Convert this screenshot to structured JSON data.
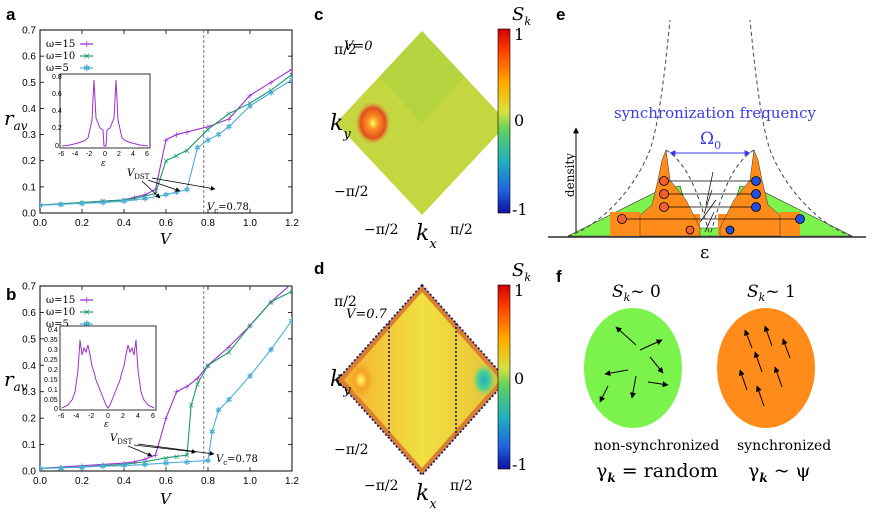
{
  "panels": {
    "a": {
      "label": "a",
      "ylabel": "r",
      "ylabel_sub": "av",
      "xlabel": "V",
      "x_ticks": [
        "0.0",
        "0.2",
        "0.4",
        "0.6",
        "0.8",
        "1.0",
        "1.2"
      ],
      "y_ticks": [
        "0.0",
        "0.1",
        "0.2",
        "0.3",
        "0.4",
        "0.5",
        "0.6",
        "0.7"
      ],
      "legend": [
        "ω=15",
        "ω=10",
        "ω=5"
      ],
      "vdst": "V",
      "vdst_sub": "DST",
      "vc": "V",
      "vc_sub": "c",
      "vc_value": "=0.78",
      "inset": {
        "xlabel": "ε",
        "x_ticks": [
          "-6",
          "-4",
          "-2",
          "0",
          "2",
          "4",
          "6"
        ],
        "y_ticks": [
          "0",
          "0.2",
          "0.4",
          "0.6",
          "0.8"
        ]
      }
    },
    "b": {
      "label": "b",
      "ylabel": "r",
      "ylabel_sub": "av",
      "xlabel": "V",
      "x_ticks": [
        "0.0",
        "0.2",
        "0.4",
        "0.6",
        "0.8",
        "1.0",
        "1.2"
      ],
      "y_ticks": [
        "0.0",
        "0.1",
        "0.2",
        "0.3",
        "0.4",
        "0.5",
        "0.6",
        "0.7"
      ],
      "legend": [
        "ω=15",
        "ω=10",
        "ω=5"
      ],
      "vdst": "V",
      "vdst_sub": "DST",
      "vc": "V",
      "vc_sub": "c",
      "vc_value": "=0.78",
      "inset": {
        "xlabel": "ε",
        "x_ticks": [
          "-6",
          "-4",
          "-2",
          "0",
          "2",
          "4",
          "6"
        ],
        "y_ticks": [
          "0",
          "0.05",
          "0.1",
          "0.15",
          "0.2",
          "0.25",
          "0.3",
          "0.35",
          "0.4"
        ]
      }
    },
    "c": {
      "label": "c",
      "annot": "V=0",
      "cbar_title": "S",
      "cbar_sub": "k",
      "cbar_ticks": [
        "1",
        "0",
        "-1"
      ],
      "ky": "k",
      "ky_sub": "y",
      "kx": "k",
      "kx_sub": "x",
      "ticks_y": [
        "π/2",
        "−π/2"
      ],
      "ticks_x": [
        "−π/2",
        "π/2"
      ]
    },
    "d": {
      "label": "d",
      "annot": "V=0.7",
      "cbar_title": "S",
      "cbar_sub": "k",
      "cbar_ticks": [
        "1",
        "0",
        "-1"
      ],
      "ky": "k",
      "ky_sub": "y",
      "kx": "k",
      "kx_sub": "x",
      "ticks_y": [
        "π/2",
        "−π/2"
      ],
      "ticks_x": [
        "−π/2",
        "π/2"
      ]
    },
    "e": {
      "label": "e",
      "title": "synchronization frequency",
      "omega": "Ω",
      "omega_sub": "0",
      "ylabel": "density",
      "xlabel": "ε"
    },
    "f": {
      "label": "f",
      "left_title": "S",
      "left_title_sub": "k",
      "left_title_val": "~ 0",
      "right_title": "S",
      "right_title_sub": "k",
      "right_title_val": "~ 1",
      "left_caption": "non-synchronized",
      "left_formula": "γ",
      "left_formula_sub": "k",
      "left_formula_val": " = random",
      "right_caption": "synchronized",
      "right_formula": "γ",
      "right_formula_sub": "k",
      "right_formula_val": " ~ ψ"
    }
  },
  "colors": {
    "omega15": "#9b30d0",
    "omega10": "#1a9a6c",
    "omega5": "#4aaed8",
    "green": "#7cf24c",
    "orange": "#ff8c1a",
    "blue_text": "#3b3bf0"
  },
  "chart_data": [
    {
      "panel": "a",
      "type": "line",
      "xlabel": "V",
      "ylabel": "r_av",
      "xlim": [
        0,
        1.2
      ],
      "ylim": [
        0,
        0.7
      ],
      "vline": 0.78,
      "series": [
        {
          "name": "ω=15",
          "x": [
            0,
            0.1,
            0.2,
            0.3,
            0.4,
            0.45,
            0.5,
            0.55,
            0.6,
            0.65,
            0.7,
            0.8,
            0.9,
            1.0,
            1.1,
            1.2
          ],
          "y": [
            0.03,
            0.035,
            0.04,
            0.045,
            0.05,
            0.06,
            0.07,
            0.09,
            0.28,
            0.3,
            0.31,
            0.33,
            0.36,
            0.45,
            0.5,
            0.55
          ]
        },
        {
          "name": "ω=10",
          "x": [
            0,
            0.1,
            0.2,
            0.3,
            0.4,
            0.45,
            0.5,
            0.55,
            0.6,
            0.65,
            0.7,
            0.8,
            0.9,
            1.0,
            1.1,
            1.2
          ],
          "y": [
            0.03,
            0.035,
            0.04,
            0.045,
            0.05,
            0.055,
            0.065,
            0.075,
            0.2,
            0.22,
            0.24,
            0.32,
            0.38,
            0.42,
            0.47,
            0.53
          ]
        },
        {
          "name": "ω=5",
          "x": [
            0,
            0.1,
            0.2,
            0.3,
            0.4,
            0.5,
            0.6,
            0.65,
            0.7,
            0.75,
            0.8,
            0.85,
            0.9,
            1.0,
            1.1,
            1.2
          ],
          "y": [
            0.03,
            0.033,
            0.037,
            0.04,
            0.045,
            0.055,
            0.07,
            0.08,
            0.09,
            0.25,
            0.28,
            0.3,
            0.33,
            0.41,
            0.46,
            0.51
          ]
        }
      ]
    },
    {
      "panel": "b",
      "type": "line",
      "xlabel": "V",
      "ylabel": "r_av",
      "xlim": [
        0,
        1.2
      ],
      "ylim": [
        0,
        0.7
      ],
      "vline": 0.78,
      "series": [
        {
          "name": "ω=15",
          "x": [
            0,
            0.1,
            0.2,
            0.3,
            0.4,
            0.45,
            0.5,
            0.55,
            0.6,
            0.65,
            0.7,
            0.75,
            0.8,
            0.9,
            1.0,
            1.1,
            1.2
          ],
          "y": [
            0.01,
            0.015,
            0.02,
            0.025,
            0.03,
            0.035,
            0.045,
            0.06,
            0.2,
            0.3,
            0.32,
            0.35,
            0.4,
            0.47,
            0.55,
            0.64,
            0.71
          ]
        },
        {
          "name": "ω=10",
          "x": [
            0,
            0.1,
            0.2,
            0.3,
            0.4,
            0.5,
            0.6,
            0.65,
            0.7,
            0.72,
            0.75,
            0.8,
            0.9,
            1.0,
            1.1,
            1.2
          ],
          "y": [
            0.01,
            0.012,
            0.015,
            0.02,
            0.025,
            0.035,
            0.05,
            0.055,
            0.06,
            0.25,
            0.33,
            0.4,
            0.45,
            0.55,
            0.64,
            0.68
          ]
        },
        {
          "name": "ω=5",
          "x": [
            0,
            0.1,
            0.2,
            0.3,
            0.4,
            0.5,
            0.6,
            0.7,
            0.8,
            0.82,
            0.85,
            0.9,
            1.0,
            1.1,
            1.2
          ],
          "y": [
            0.01,
            0.012,
            0.015,
            0.018,
            0.02,
            0.025,
            0.03,
            0.035,
            0.04,
            0.15,
            0.23,
            0.27,
            0.36,
            0.46,
            0.57
          ]
        }
      ]
    }
  ]
}
